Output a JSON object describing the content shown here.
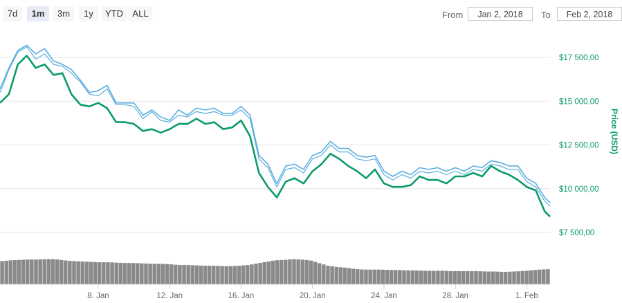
{
  "range_selector": {
    "buttons": [
      "7d",
      "1m",
      "3m",
      "1y",
      "YTD",
      "ALL"
    ],
    "selected": "1m"
  },
  "date_range": {
    "from_label": "From",
    "from_value": "Jan 2, 2018",
    "to_label": "To",
    "to_value": "Feb 2, 2018"
  },
  "colors": {
    "upper_line": "#5aaee0",
    "lower_line": "#0a9a6c",
    "volume": "#8a8a8a",
    "axis_text": "#0a9a6c",
    "grid": "#e6e6e6"
  },
  "chart_data": {
    "type": "line",
    "ylabel": "Price (USD)",
    "y_tick_labels": [
      "$7 500,00",
      "$10 000,00",
      "$12 500,00",
      "$15 000,00",
      "$17 500,00"
    ],
    "y_ticks": [
      7500,
      10000,
      12500,
      15000,
      17500
    ],
    "ylim": [
      7500,
      19200
    ],
    "x_tick_labels": [
      "8. Jan",
      "12. Jan",
      "16. Jan",
      "20. Jan",
      "24. Jan",
      "28. Jan",
      "1. Feb"
    ],
    "x_ticks": [
      6,
      10,
      14,
      18,
      22,
      26,
      30
    ],
    "xlim": [
      0.5,
      31.3
    ],
    "x": [
      0.5,
      1,
      1.5,
      2,
      2.5,
      3,
      3.5,
      4,
      4.5,
      5,
      5.5,
      6,
      6.5,
      7,
      7.5,
      8,
      8.5,
      9,
      9.5,
      10,
      10.5,
      11,
      11.5,
      12,
      12.5,
      13,
      13.5,
      14,
      14.5,
      15,
      15.5,
      16,
      16.5,
      17,
      17.5,
      18,
      18.5,
      19,
      19.5,
      20,
      20.5,
      21,
      21.5,
      22,
      22.5,
      23,
      23.5,
      24,
      24.5,
      25,
      25.5,
      26,
      26.5,
      27,
      27.5,
      28,
      28.5,
      29,
      29.5,
      30,
      30.5,
      31,
      31.3
    ],
    "series": [
      {
        "values": [
          15700,
          16900,
          17900,
          18200,
          17700,
          18000,
          17300,
          17100,
          16800,
          16200,
          15500,
          15600,
          15900,
          14900,
          14900,
          14900,
          14200,
          14500,
          14100,
          13900,
          14500,
          14200,
          14600,
          14500,
          14600,
          14300,
          14300,
          14700,
          14200,
          11900,
          11400,
          10300,
          11300,
          11400,
          11100,
          11900,
          12100,
          12700,
          12300,
          12300,
          11900,
          11800,
          11900,
          11000,
          10700,
          11000,
          10800,
          11200,
          11100,
          11200,
          11000,
          11200,
          11000,
          11300,
          11200,
          11600,
          11500,
          11300,
          11300,
          10600,
          10300,
          9500,
          9200
        ]
      },
      {
        "values": [
          15500,
          16800,
          17800,
          18100,
          17400,
          17700,
          17100,
          17000,
          16600,
          16100,
          15400,
          15300,
          15700,
          14800,
          14800,
          14700,
          14000,
          14400,
          13900,
          13800,
          14200,
          14100,
          14400,
          14300,
          14400,
          14200,
          14200,
          14500,
          14000,
          11700,
          11200,
          10100,
          11100,
          11200,
          10900,
          11700,
          11900,
          12500,
          12100,
          12100,
          11700,
          11600,
          11700,
          10800,
          10500,
          10800,
          10600,
          11000,
          10900,
          11000,
          10800,
          11000,
          10800,
          11100,
          11000,
          11400,
          11300,
          11100,
          11100,
          10400,
          10100,
          9300,
          9000
        ]
      },
      {
        "values": [
          14900,
          15400,
          17100,
          17600,
          16900,
          17100,
          16500,
          16600,
          15400,
          14800,
          14700,
          14900,
          14600,
          13800,
          13800,
          13700,
          13300,
          13400,
          13200,
          13400,
          13700,
          13700,
          14000,
          13700,
          13800,
          13400,
          13500,
          13900,
          13000,
          10900,
          10100,
          9500,
          10400,
          10600,
          10300,
          11000,
          11400,
          12000,
          11700,
          11300,
          11000,
          10600,
          11100,
          10300,
          10100,
          10100,
          10200,
          10700,
          10500,
          10500,
          10300,
          10700,
          10700,
          10900,
          10700,
          11300,
          11000,
          10800,
          10500,
          10100,
          9900,
          8700,
          8400
        ]
      }
    ],
    "volume": [
      60,
      62,
      63,
      64,
      64,
      65,
      65,
      62,
      60,
      59,
      58,
      57,
      57,
      56,
      55,
      55,
      54,
      53,
      53,
      52,
      50,
      50,
      49,
      48,
      48,
      47,
      47,
      48,
      50,
      54,
      58,
      62,
      63,
      65,
      64,
      62,
      55,
      48,
      45,
      43,
      40,
      38,
      38,
      38,
      37,
      37,
      36,
      36,
      35,
      35,
      35,
      34,
      34,
      34,
      34,
      33,
      33,
      32,
      33,
      34,
      36,
      38,
      39
    ],
    "volume_max": 100
  }
}
